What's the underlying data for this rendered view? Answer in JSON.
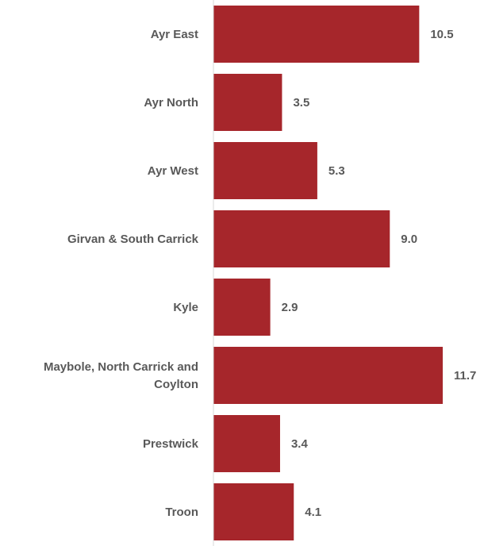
{
  "chart_data": {
    "type": "bar",
    "orientation": "horizontal",
    "categories": [
      [
        "Ayr East"
      ],
      [
        "Ayr North"
      ],
      [
        "Ayr West"
      ],
      [
        "Girvan & South Carrick"
      ],
      [
        "Kyle"
      ],
      [
        "Maybole, North Carrick and",
        "Coylton"
      ],
      [
        "Prestwick"
      ],
      [
        "Troon"
      ]
    ],
    "values": [
      10.5,
      3.5,
      5.3,
      9.0,
      2.9,
      11.7,
      3.4,
      4.1
    ],
    "value_labels": [
      "10.5",
      "3.5",
      "5.3",
      "9.0",
      "2.9",
      "11.7",
      "3.4",
      "4.1"
    ],
    "xlim": [
      0,
      13.5
    ],
    "grid": false,
    "legend": "none",
    "bar_color": "#A6262B",
    "axis_color": "#D9D9D9",
    "label_color": "#595959"
  }
}
